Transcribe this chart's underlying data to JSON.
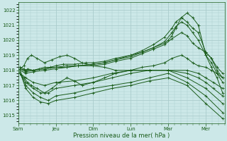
{
  "title": "",
  "xlabel": "Pression niveau de la mer( hPa )",
  "ylabel": "",
  "bg_color": "#cce8e8",
  "grid_color": "#aacccc",
  "line_color": "#1a5c1a",
  "ylim": [
    1014.5,
    1022.5
  ],
  "yticks": [
    1015,
    1016,
    1017,
    1018,
    1019,
    1020,
    1021,
    1022
  ],
  "day_labels": [
    "Sam",
    "Jeu",
    "Dim",
    "Lun",
    "Mar",
    "Mer"
  ],
  "day_positions": [
    0,
    1,
    2,
    3,
    4,
    5
  ],
  "xlim": [
    0,
    5.5
  ],
  "lines": [
    {
      "x": [
        0.05,
        0.15,
        0.2,
        0.25,
        0.4,
        0.55,
        0.7,
        0.85,
        1.0,
        1.2,
        1.5,
        1.8,
        2.0,
        2.3,
        2.6,
        3.0,
        3.3,
        3.6,
        3.9,
        4.0,
        4.1,
        4.2,
        4.35,
        4.5,
        4.65,
        4.8,
        5.0,
        5.15,
        5.3,
        5.45
      ],
      "y": [
        1018.2,
        1018.1,
        1018.0,
        1018.1,
        1018.0,
        1018.1,
        1018.2,
        1018.2,
        1018.3,
        1018.4,
        1018.4,
        1018.5,
        1018.5,
        1018.6,
        1018.8,
        1019.0,
        1019.2,
        1019.5,
        1019.8,
        1020.0,
        1020.3,
        1020.8,
        1021.5,
        1021.8,
        1021.5,
        1021.0,
        1019.0,
        1018.2,
        1017.5,
        1016.5
      ]
    },
    {
      "x": [
        0.05,
        0.2,
        0.4,
        0.7,
        1.0,
        1.3,
        1.6,
        2.0,
        2.3,
        2.6,
        3.0,
        3.3,
        3.6,
        3.9,
        4.1,
        4.2,
        4.35,
        4.5,
        4.65,
        4.8,
        5.0,
        5.15,
        5.3,
        5.45
      ],
      "y": [
        1018.1,
        1018.0,
        1018.0,
        1018.1,
        1018.2,
        1018.3,
        1018.3,
        1018.4,
        1018.5,
        1018.7,
        1019.0,
        1019.3,
        1019.7,
        1020.2,
        1020.8,
        1021.2,
        1021.5,
        1021.2,
        1020.8,
        1020.5,
        1019.2,
        1018.8,
        1018.2,
        1017.8
      ]
    },
    {
      "x": [
        0.05,
        0.2,
        0.4,
        0.7,
        1.0,
        1.3,
        1.6,
        2.0,
        2.3,
        2.6,
        3.0,
        3.3,
        3.6,
        3.9,
        4.1,
        4.2,
        4.35,
        4.5,
        4.65,
        4.8,
        5.0,
        5.15,
        5.3,
        5.45
      ],
      "y": [
        1018.1,
        1017.9,
        1018.0,
        1018.1,
        1018.2,
        1018.2,
        1018.3,
        1018.4,
        1018.5,
        1018.7,
        1018.9,
        1019.2,
        1019.5,
        1019.9,
        1020.5,
        1020.9,
        1021.2,
        1021.0,
        1020.5,
        1020.0,
        1019.0,
        1018.5,
        1017.8,
        1017.2
      ]
    },
    {
      "x": [
        0.05,
        0.2,
        0.4,
        0.7,
        1.0,
        1.3,
        1.6,
        2.0,
        2.3,
        2.6,
        3.0,
        3.3,
        3.6,
        3.9,
        4.1,
        4.35,
        4.5,
        4.65,
        4.8,
        5.0,
        5.15,
        5.3,
        5.45
      ],
      "y": [
        1018.0,
        1017.8,
        1017.9,
        1018.0,
        1018.1,
        1018.2,
        1018.3,
        1018.3,
        1018.4,
        1018.6,
        1018.8,
        1019.1,
        1019.4,
        1019.7,
        1020.1,
        1020.5,
        1020.3,
        1019.8,
        1019.5,
        1019.2,
        1018.8,
        1018.0,
        1017.5
      ]
    },
    {
      "x": [
        0.05,
        0.15,
        0.25,
        0.35,
        0.5,
        0.7,
        0.9,
        1.1,
        1.3,
        1.5,
        1.7,
        2.0,
        2.3,
        2.6,
        3.0,
        3.3,
        3.6,
        3.9,
        4.1,
        4.35,
        4.5,
        4.65,
        4.8,
        5.0,
        5.15,
        5.3,
        5.45
      ],
      "y": [
        1018.1,
        1018.3,
        1018.8,
        1019.0,
        1018.8,
        1018.5,
        1018.7,
        1018.9,
        1019.0,
        1018.8,
        1018.5,
        1018.3,
        1018.2,
        1018.0,
        1018.0,
        1018.2,
        1018.3,
        1018.5,
        1018.8,
        1019.0,
        1018.8,
        1018.5,
        1018.3,
        1018.2,
        1018.0,
        1017.8,
        1017.5
      ]
    },
    {
      "x": [
        0.05,
        0.15,
        0.25,
        0.35,
        0.5,
        0.7,
        0.9,
        1.1,
        1.3,
        1.5,
        1.7,
        2.0,
        2.3,
        2.6,
        3.0,
        3.5,
        4.0,
        4.5,
        4.8,
        5.0,
        5.2,
        5.45
      ],
      "y": [
        1017.8,
        1017.5,
        1017.2,
        1017.0,
        1016.8,
        1016.5,
        1016.8,
        1017.2,
        1017.5,
        1017.3,
        1017.0,
        1017.2,
        1017.5,
        1017.8,
        1018.0,
        1018.0,
        1018.0,
        1018.0,
        1017.8,
        1017.5,
        1017.2,
        1016.8
      ]
    },
    {
      "x": [
        0.05,
        0.2,
        0.4,
        0.7,
        1.0,
        1.5,
        2.0,
        2.5,
        3.0,
        3.5,
        4.0,
        4.5,
        4.8,
        5.0,
        5.2,
        5.45
      ],
      "y": [
        1017.8,
        1017.5,
        1017.2,
        1017.0,
        1017.2,
        1017.3,
        1017.5,
        1017.8,
        1018.0,
        1018.0,
        1018.0,
        1017.8,
        1017.5,
        1017.2,
        1016.8,
        1016.3
      ]
    },
    {
      "x": [
        0.05,
        0.2,
        0.4,
        0.6,
        0.8,
        1.0,
        1.5,
        2.0,
        2.5,
        3.0,
        3.5,
        4.0,
        4.5,
        5.0,
        5.45
      ],
      "y": [
        1017.8,
        1017.2,
        1016.8,
        1016.5,
        1016.5,
        1016.8,
        1017.0,
        1017.2,
        1017.5,
        1017.8,
        1018.0,
        1018.0,
        1017.5,
        1016.8,
        1015.8
      ]
    },
    {
      "x": [
        0.05,
        0.2,
        0.4,
        0.6,
        0.8,
        1.0,
        1.5,
        2.0,
        2.5,
        3.0,
        3.5,
        4.0,
        4.5,
        5.0,
        5.45
      ],
      "y": [
        1017.8,
        1017.0,
        1016.5,
        1016.2,
        1016.0,
        1016.3,
        1016.5,
        1016.8,
        1017.0,
        1017.2,
        1017.5,
        1017.8,
        1017.2,
        1016.3,
        1015.2
      ]
    },
    {
      "x": [
        0.05,
        0.2,
        0.4,
        0.6,
        0.8,
        1.0,
        1.5,
        2.0,
        2.5,
        3.0,
        3.5,
        4.0,
        4.5,
        5.0,
        5.45
      ],
      "y": [
        1017.9,
        1016.8,
        1016.2,
        1015.9,
        1015.8,
        1016.0,
        1016.2,
        1016.5,
        1016.8,
        1017.0,
        1017.3,
        1017.5,
        1017.0,
        1015.8,
        1014.8
      ]
    }
  ]
}
